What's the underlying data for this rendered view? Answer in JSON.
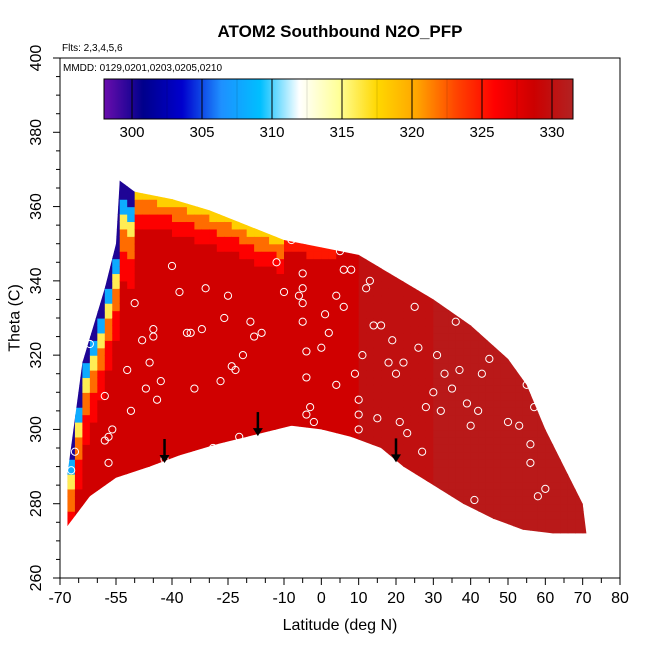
{
  "chart_data": {
    "type": "heatmap",
    "title": "ATOM2 Southbound N2O_PFP",
    "flights_note": "Flts: 2,3,4,5,6",
    "dates_note": "MMDD: 0129,0201,0203,0205,0210",
    "xlabel": "Latitude (deg N)",
    "ylabel": "Theta (C)",
    "xlim": [
      -70,
      80
    ],
    "ylim": [
      260,
      400
    ],
    "x_ticks": [
      -70,
      -55,
      -40,
      -25,
      -10,
      0,
      10,
      20,
      30,
      40,
      50,
      60,
      70,
      80
    ],
    "x_minor_ticks": [
      -65,
      -60,
      -50,
      -45,
      -35,
      -30,
      -20,
      -15,
      -5,
      5,
      15,
      25,
      35,
      45,
      55,
      65,
      75
    ],
    "y_ticks": [
      260,
      280,
      300,
      320,
      340,
      360,
      380,
      400
    ],
    "colorbar": {
      "range": [
        298,
        331.5
      ],
      "ticks": [
        300,
        305,
        310,
        315,
        320,
        325,
        330
      ],
      "colors": [
        "#6a0dad",
        "#00008b",
        "#0000cd",
        "#1e90ff",
        "#00bfff",
        "#ffffff",
        "#ffff99",
        "#ffd700",
        "#ffa500",
        "#ff4500",
        "#ff0000",
        "#cc0000",
        "#b22222"
      ]
    },
    "field": {
      "description_units": "N2O (ppb) on theta-latitude section",
      "lower_boundary": [
        [
          -68,
          274
        ],
        [
          -62,
          282
        ],
        [
          -55,
          287
        ],
        [
          -46,
          290
        ],
        [
          -38,
          293
        ],
        [
          -28,
          296
        ],
        [
          -20,
          298
        ],
        [
          -8,
          301
        ],
        [
          0,
          300
        ],
        [
          8,
          298
        ],
        [
          16,
          295
        ],
        [
          22,
          290
        ],
        [
          30,
          285
        ],
        [
          38,
          280
        ],
        [
          46,
          276
        ],
        [
          54,
          273
        ],
        [
          62,
          272
        ],
        [
          71,
          272
        ]
      ],
      "upper_boundary": [
        [
          -68,
          288
        ],
        [
          -64,
          318
        ],
        [
          -58,
          338
        ],
        [
          -55,
          350
        ],
        [
          -54,
          367
        ],
        [
          -50,
          364
        ],
        [
          -40,
          362
        ],
        [
          -30,
          359
        ],
        [
          -20,
          355
        ],
        [
          -10,
          351
        ],
        [
          0,
          349
        ],
        [
          10,
          347
        ],
        [
          20,
          341
        ],
        [
          30,
          335
        ],
        [
          40,
          328
        ],
        [
          50,
          319
        ],
        [
          55,
          312
        ],
        [
          60,
          300
        ],
        [
          65,
          290
        ],
        [
          70,
          280
        ],
        [
          71,
          272
        ]
      ]
    },
    "samples": [
      [
        -67,
        289
      ],
      [
        -66,
        294
      ],
      [
        -62,
        323
      ],
      [
        -58,
        309
      ],
      [
        -58,
        297
      ],
      [
        -57,
        298
      ],
      [
        -56,
        300
      ],
      [
        -57,
        291
      ],
      [
        -56,
        283
      ],
      [
        -55,
        281
      ],
      [
        -52,
        316
      ],
      [
        -51,
        305
      ],
      [
        -50,
        334
      ],
      [
        -48,
        324
      ],
      [
        -47,
        311
      ],
      [
        -46,
        318
      ],
      [
        -45,
        327
      ],
      [
        -45,
        325
      ],
      [
        -44,
        308
      ],
      [
        -43,
        313
      ],
      [
        -42,
        292
      ],
      [
        -40,
        344
      ],
      [
        -38,
        337
      ],
      [
        -36,
        326
      ],
      [
        -35,
        326
      ],
      [
        -34,
        311
      ],
      [
        -32,
        327
      ],
      [
        -31,
        338
      ],
      [
        -29,
        295
      ],
      [
        -27,
        313
      ],
      [
        -26,
        330
      ],
      [
        -25,
        336
      ],
      [
        -24,
        317
      ],
      [
        -23,
        316
      ],
      [
        -22,
        298
      ],
      [
        -21,
        320
      ],
      [
        -19,
        329
      ],
      [
        -18,
        325
      ],
      [
        -16,
        326
      ],
      [
        -12,
        345
      ],
      [
        -10,
        337
      ],
      [
        -8,
        351
      ],
      [
        -6,
        336
      ],
      [
        -5,
        342
      ],
      [
        -5,
        338
      ],
      [
        -5,
        334
      ],
      [
        -5,
        329
      ],
      [
        -4,
        321
      ],
      [
        -4,
        314
      ],
      [
        -4,
        304
      ],
      [
        -3,
        306
      ],
      [
        -2,
        302
      ],
      [
        0,
        322
      ],
      [
        1,
        331
      ],
      [
        2,
        326
      ],
      [
        4,
        312
      ],
      [
        4,
        336
      ],
      [
        5,
        348
      ],
      [
        6,
        343
      ],
      [
        6,
        333
      ],
      [
        8,
        343
      ],
      [
        9,
        315
      ],
      [
        10,
        304
      ],
      [
        10,
        300
      ],
      [
        10,
        308
      ],
      [
        11,
        320
      ],
      [
        12,
        338
      ],
      [
        13,
        340
      ],
      [
        14,
        328
      ],
      [
        15,
        303
      ],
      [
        16,
        328
      ],
      [
        18,
        318
      ],
      [
        19,
        324
      ],
      [
        20,
        315
      ],
      [
        20,
        349
      ],
      [
        21,
        302
      ],
      [
        22,
        318
      ],
      [
        23,
        299
      ],
      [
        25,
        333
      ],
      [
        26,
        322
      ],
      [
        27,
        294
      ],
      [
        28,
        306
      ],
      [
        30,
        310
      ],
      [
        31,
        320
      ],
      [
        32,
        305
      ],
      [
        33,
        315
      ],
      [
        35,
        311
      ],
      [
        36,
        329
      ],
      [
        37,
        316
      ],
      [
        39,
        307
      ],
      [
        40,
        301
      ],
      [
        41,
        281
      ],
      [
        42,
        305
      ],
      [
        43,
        315
      ],
      [
        45,
        319
      ],
      [
        48,
        274
      ],
      [
        50,
        302
      ],
      [
        52,
        325
      ],
      [
        53,
        301
      ],
      [
        55,
        312
      ],
      [
        56,
        296
      ],
      [
        56,
        291
      ],
      [
        57,
        306
      ],
      [
        58,
        282
      ],
      [
        60,
        284
      ],
      [
        62,
        306
      ]
    ],
    "arrows_at_latitude": [
      -42,
      -17,
      20
    ]
  }
}
